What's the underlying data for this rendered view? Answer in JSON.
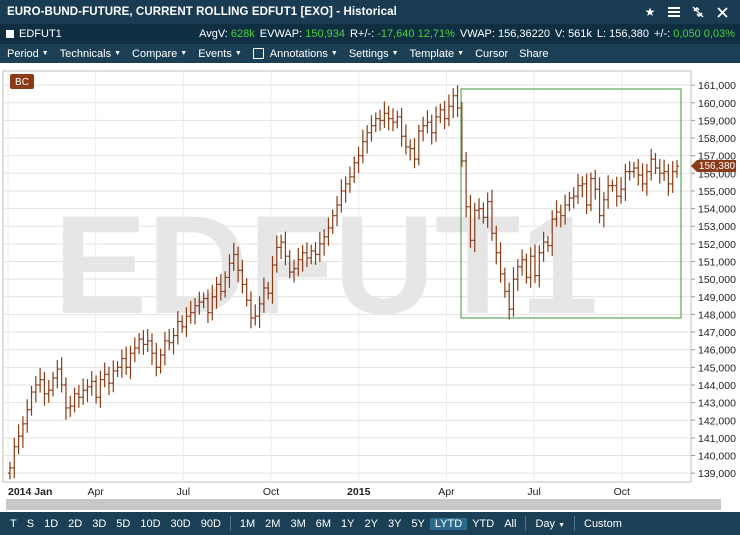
{
  "window": {
    "title": "EURO-BUND-FUTURE, CURRENT ROLLING EDFUT1 [EXO] - Historical",
    "icons": [
      "star-icon",
      "menu-icon",
      "unlink-icon",
      "close-icon"
    ]
  },
  "infobar": {
    "symbol": "EDFUT1",
    "avgv_label": "AvgV:",
    "avgv_value": "628k",
    "evwap_label": "EVWAP:",
    "evwap_value": "150,934",
    "rpm_label": "R+/-:",
    "rpm_value": "-17,640",
    "rpm_pct": "12,71%",
    "vwap_label": "VWAP:",
    "vwap_value": "156,36220",
    "v_label": "V:",
    "v_value": "561k",
    "l_label": "L:",
    "l_value": "156,380",
    "pm_label": "+/-:",
    "pm_value": "0,050",
    "pm_pct": "0,03%"
  },
  "menu": {
    "period": "Period",
    "technicals": "Technicals",
    "compare": "Compare",
    "events": "Events",
    "annotations": "Annotations",
    "settings": "Settings",
    "template": "Template",
    "cursor": "Cursor",
    "share": "Share"
  },
  "chart_data": {
    "type": "bar",
    "watermark": "EDFUT1",
    "badge": "BC",
    "last_price_label": "156,380",
    "ylim": [
      138.5,
      161.8
    ],
    "y_ticks": [
      "139,000",
      "140,000",
      "141,000",
      "142,000",
      "143,000",
      "144,000",
      "145,000",
      "146,000",
      "147,000",
      "148,000",
      "149,000",
      "150,000",
      "151,000",
      "152,000",
      "153,000",
      "154,000",
      "155,000",
      "156,000",
      "157,000",
      "158,000",
      "159,000",
      "160,000",
      "161,000"
    ],
    "x_ticks": [
      "2014 Jan",
      "Apr",
      "Jul",
      "Oct",
      "2015",
      "Apr",
      "Jul",
      "Oct"
    ],
    "series": [
      {
        "closes": [
          139.3,
          140.5,
          141.1,
          141.8,
          142.6,
          143.6,
          144.0,
          144.3,
          143.5,
          143.7,
          144.4,
          144.9,
          144.0,
          142.7,
          142.8,
          143.5,
          143.3,
          143.7,
          143.9,
          144.2,
          143.3,
          144.3,
          144.6,
          144.1,
          144.8,
          145.0,
          145.5,
          145.0,
          145.8,
          146.1,
          146.6,
          146.3,
          146.5,
          145.8,
          145.0,
          145.7,
          146.5,
          146.4,
          146.8,
          147.6,
          147.3,
          147.9,
          148.1,
          148.5,
          148.7,
          148.9,
          148.1,
          149.0,
          149.7,
          149.3,
          150.1,
          150.9,
          151.4,
          150.5,
          149.7,
          148.8,
          147.8,
          147.9,
          148.6,
          149.5,
          149.2,
          150.8,
          151.8,
          152.1,
          151.3,
          150.4,
          150.6,
          151.1,
          151.5,
          151.2,
          151.6,
          151.4,
          152.0,
          152.4,
          152.9,
          153.6,
          154.2,
          155.0,
          155.4,
          155.8,
          156.6,
          157.0,
          157.8,
          158.3,
          158.7,
          159.1,
          159.0,
          159.4,
          159.1,
          158.9,
          159.2,
          158.1,
          157.5,
          157.4,
          156.8,
          158.4,
          158.7,
          158.9,
          158.3,
          159.2,
          159.6,
          159.1,
          159.8,
          160.4,
          159.7,
          156.7,
          154.1,
          152.2,
          153.9,
          154.0,
          153.5,
          154.4,
          152.6,
          151.5,
          150.3,
          149.3,
          148.3,
          150.0,
          150.7,
          151.1,
          150.1,
          151.3,
          150.2,
          151.5,
          152.1,
          151.9,
          153.4,
          153.8,
          153.6,
          154.2,
          154.6,
          154.7,
          155.3,
          155.4,
          154.2,
          155.7,
          155.1,
          153.6,
          154.5,
          155.3,
          155.3,
          154.7,
          155.1,
          156.1,
          156.1,
          156.3,
          155.9,
          155.4,
          156.1,
          156.8,
          156.3,
          156.0,
          156.1,
          155.4,
          156.1,
          156.4
        ]
      }
    ]
  },
  "scrollbar": {
    "label": "horizontal-scrollbar"
  },
  "timeframes": {
    "t": "T",
    "s": "S",
    "d1": "1D",
    "d2": "2D",
    "d3": "3D",
    "d5": "5D",
    "d10": "10D",
    "d30": "30D",
    "d90": "90D",
    "m1": "1M",
    "m2": "2M",
    "m3": "3M",
    "m6": "6M",
    "y1": "1Y",
    "y2": "2Y",
    "y3": "3Y",
    "y5": "5Y",
    "lytd": "LYTD",
    "ytd": "YTD",
    "all": "All",
    "interval": "Day",
    "custom": "Custom"
  }
}
